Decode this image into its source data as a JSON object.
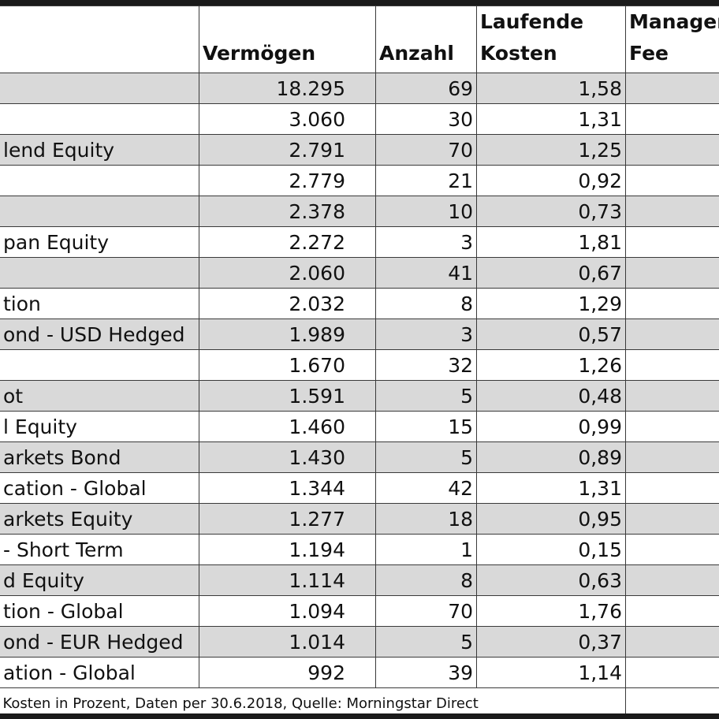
{
  "table": {
    "header": [
      "Vermögen",
      "Anzahl",
      [
        "Laufende",
        "Kosten"
      ],
      [
        "Management",
        "Fee"
      ]
    ],
    "rows": [
      [
        null,
        "18.295",
        "69",
        "1,58"
      ],
      [
        null,
        "3.060",
        "30",
        "1,31"
      ],
      [
        "lend Equity",
        "2.791",
        "70",
        "1,25"
      ],
      [
        null,
        "2.779",
        "21",
        "0,92"
      ],
      [
        null,
        "2.378",
        "10",
        "0,73"
      ],
      [
        "pan Equity",
        "2.272",
        "3",
        "1,81"
      ],
      [
        null,
        "2.060",
        "41",
        "0,67"
      ],
      [
        "tion",
        "2.032",
        "8",
        "1,29"
      ],
      [
        "ond - USD Hedged",
        "1.989",
        "3",
        "0,57"
      ],
      [
        null,
        "1.670",
        "32",
        "1,26"
      ],
      [
        "ot",
        "1.591",
        "5",
        "0,48"
      ],
      [
        "l Equity",
        "1.460",
        "15",
        "0,99"
      ],
      [
        "arkets Bond",
        "1.430",
        "5",
        "0,89"
      ],
      [
        "cation - Global",
        "1.344",
        "42",
        "1,31"
      ],
      [
        "arkets Equity",
        "1.277",
        "18",
        "0,95"
      ],
      [
        "- Short Term",
        "1.194",
        "1",
        "0,15"
      ],
      [
        "d Equity",
        "1.114",
        "8",
        "0,63"
      ],
      [
        "tion - Global",
        "1.094",
        "70",
        "1,76"
      ],
      [
        "ond - EUR Hedged",
        "1.014",
        "5",
        "0,37"
      ],
      [
        "ation - Global",
        "992",
        "39",
        "1,14"
      ]
    ],
    "footnote": "Kosten in Prozent, Daten per 30.6.2018, Quelle: Morningstar Direct"
  }
}
